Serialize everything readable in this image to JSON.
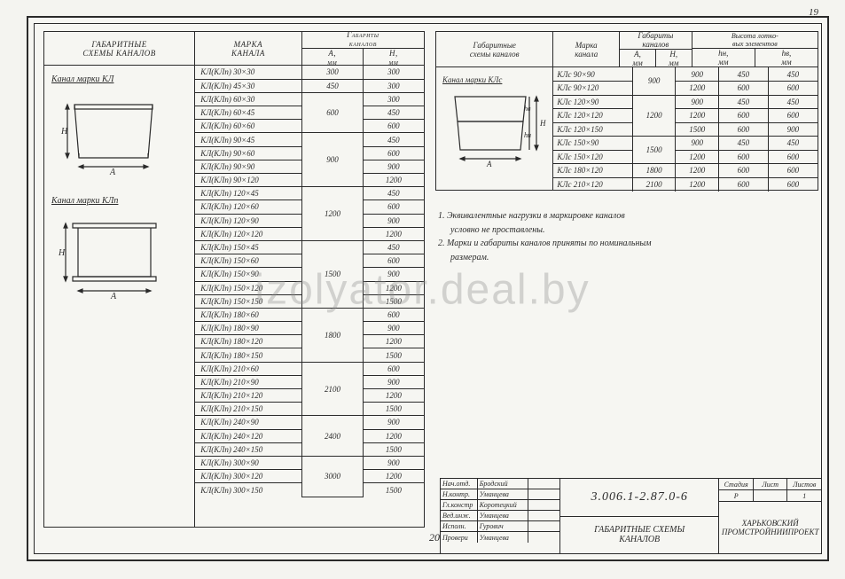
{
  "page_num_top": "19",
  "page_num_bottom": "20",
  "watermark": "izolyator.deal.by",
  "left": {
    "head": {
      "schemes": "Габаритные\nсхемы  каналов",
      "mark": "Марка\nканала",
      "gab": "Габариты\nканалов",
      "a": "A,\nмм",
      "h": "H,\nмм"
    },
    "schemes": [
      "Канал  марки КЛ",
      "Канал  марки КЛп"
    ],
    "groups": [
      {
        "a": "300",
        "rows": [
          [
            "КЛ(КЛп) 30×30",
            "300"
          ]
        ]
      },
      {
        "a": "450",
        "rows": [
          [
            "КЛ(КЛп) 45×30",
            "300"
          ]
        ]
      },
      {
        "a": "600",
        "rows": [
          [
            "КЛ(КЛп) 60×30",
            "300"
          ],
          [
            "КЛ(КЛп) 60×45",
            "450"
          ],
          [
            "КЛ(КЛп) 60×60",
            "600"
          ]
        ]
      },
      {
        "a": "900",
        "rows": [
          [
            "КЛ(КЛп) 90×45",
            "450"
          ],
          [
            "КЛ(КЛп) 90×60",
            "600"
          ],
          [
            "КЛ(КЛп) 90×90",
            "900"
          ],
          [
            "КЛ(КЛп) 90×120",
            "1200"
          ]
        ]
      },
      {
        "a": "1200",
        "rows": [
          [
            "КЛ(КЛп) 120×45",
            "450"
          ],
          [
            "КЛ(КЛп) 120×60",
            "600"
          ],
          [
            "КЛ(КЛп) 120×90",
            "900"
          ],
          [
            "КЛ(КЛп) 120×120",
            "1200"
          ]
        ]
      },
      {
        "a": "1500",
        "rows": [
          [
            "КЛ(КЛп) 150×45",
            "450"
          ],
          [
            "КЛ(КЛп) 150×60",
            "600"
          ],
          [
            "КЛ(КЛп) 150×90",
            "900"
          ],
          [
            "КЛ(КЛп) 150×120",
            "1200"
          ],
          [
            "КЛ(КЛп) 150×150",
            "1500"
          ]
        ]
      },
      {
        "a": "1800",
        "rows": [
          [
            "КЛ(КЛп) 180×60",
            "600"
          ],
          [
            "КЛ(КЛп) 180×90",
            "900"
          ],
          [
            "КЛ(КЛп) 180×120",
            "1200"
          ],
          [
            "КЛ(КЛп) 180×150",
            "1500"
          ]
        ]
      },
      {
        "a": "2100",
        "rows": [
          [
            "КЛ(КЛп) 210×60",
            "600"
          ],
          [
            "КЛ(КЛп) 210×90",
            "900"
          ],
          [
            "КЛ(КЛп) 210×120",
            "1200"
          ],
          [
            "КЛ(КЛп) 210×150",
            "1500"
          ]
        ]
      },
      {
        "a": "2400",
        "rows": [
          [
            "КЛ(КЛп) 240×90",
            "900"
          ],
          [
            "КЛ(КЛп) 240×120",
            "1200"
          ],
          [
            "КЛ(КЛп) 240×150",
            "1500"
          ]
        ]
      },
      {
        "a": "3000",
        "rows": [
          [
            "КЛ(КЛп) 300×90",
            "900"
          ],
          [
            "КЛ(КЛп) 300×120",
            "1200"
          ],
          [
            "КЛ(КЛп) 300×150",
            "1500"
          ]
        ]
      }
    ]
  },
  "right": {
    "head": {
      "schemes": "Габаритные\nсхемы  каналов",
      "mark": "Марка\nканала",
      "gab": "Габариты\nканалов",
      "lot": "Высота лотко-\nвых элементов",
      "a": "A,\nмм",
      "h": "H,\nмм",
      "hn": "hн,\nмм",
      "hv": "hв,\nмм"
    },
    "scheme_title": "Канал  марки КЛс",
    "groups": [
      {
        "a": "900",
        "rows": [
          [
            "КЛс 90×90",
            "900",
            "450",
            "450"
          ],
          [
            "КЛс 90×120",
            "1200",
            "600",
            "600"
          ]
        ]
      },
      {
        "a": "1200",
        "rows": [
          [
            "КЛс 120×90",
            "900",
            "450",
            "450"
          ],
          [
            "КЛс 120×120",
            "1200",
            "600",
            "600"
          ],
          [
            "КЛс 120×150",
            "1500",
            "600",
            "900"
          ]
        ]
      },
      {
        "a": "1500",
        "rows": [
          [
            "КЛс 150×90",
            "900",
            "450",
            "450"
          ],
          [
            "КЛс 150×120",
            "1200",
            "600",
            "600"
          ]
        ]
      },
      {
        "a": "1800",
        "rows": [
          [
            "КЛс 180×120",
            "1200",
            "600",
            "600"
          ]
        ]
      },
      {
        "a": "2100",
        "rows": [
          [
            "КЛс 210×120",
            "1200",
            "600",
            "600"
          ]
        ]
      }
    ]
  },
  "notes": [
    "1. Эквивалентные  нагрузки  в  маркировке  каналов",
    "   условно  не  проставлены.",
    "2. Марки  и  габариты  каналов  приняты  по  номинальным",
    "   размерам."
  ],
  "titleblock": {
    "roles": [
      [
        "Нач.отд.",
        "Бродский"
      ],
      [
        "Н.контр.",
        "Уманцева"
      ],
      [
        "Гл.констр",
        "Коротецкий"
      ],
      [
        "Вед.инж.",
        "Уманцева"
      ],
      [
        "Исполн.",
        "Гурович"
      ],
      [
        "Провери",
        "Уманцева"
      ]
    ],
    "code": "3.006.1-2.87.0-6",
    "title": "Габаритные  схемы\nканалов",
    "meta_labels": [
      "Стадия",
      "Лист",
      "Листов"
    ],
    "meta_values": [
      "Р",
      "",
      "1"
    ],
    "org": "Харьковский\nПромстройниипроект"
  },
  "styling": {
    "stroke": "#2a2a2a",
    "bg": "#f6f6f2",
    "font": "Times New Roman italic",
    "font_size_body": 9,
    "font_size_code": 14
  }
}
